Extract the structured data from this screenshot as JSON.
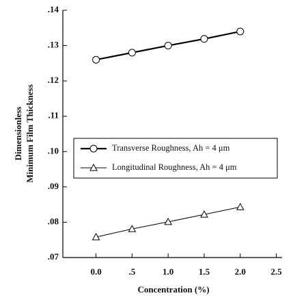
{
  "chart_data": {
    "type": "line",
    "x_label": "Concentration (%)",
    "y_label": [
      "Dimensionless",
      "Minimum Film Thickness"
    ],
    "x": [
      0,
      0.5,
      1,
      1.5,
      2
    ],
    "series": [
      {
        "name": "Transverse Roughness, Ah = 4 μm",
        "color": "#000000",
        "marker": "circle",
        "line_width": 2.2,
        "values": [
          0.126,
          0.128,
          0.13,
          0.1319,
          0.134
        ]
      },
      {
        "name": "Longitudinal Roughness, Ah = 4 μm",
        "color": "#000000",
        "marker": "triangle",
        "line_width": 1,
        "values": [
          0.0758,
          0.0781,
          0.0801,
          0.0822,
          0.0843
        ]
      }
    ],
    "xlim": [
      -0.46,
      2.58
    ],
    "ylim": [
      0.07,
      0.14
    ],
    "xticks": [
      {
        "value": 0,
        "label": "0.0"
      },
      {
        "value": 0.5,
        "label": ".5"
      },
      {
        "value": 1,
        "label": "1.0"
      },
      {
        "value": 1.5,
        "label": "1.5"
      },
      {
        "value": 2,
        "label": "2.0"
      },
      {
        "value": 2.5,
        "label": "2.5"
      }
    ],
    "yticks": [
      {
        "value": 0.07,
        "label": ".07"
      },
      {
        "value": 0.08,
        "label": ".08"
      },
      {
        "value": 0.09,
        "label": ".09"
      },
      {
        "value": 0.1,
        "label": ".10"
      },
      {
        "value": 0.11,
        "label": ".11"
      },
      {
        "value": 0.12,
        "label": ".12"
      },
      {
        "value": 0.13,
        "label": ".13"
      },
      {
        "value": 0.14,
        "label": ".14"
      }
    ],
    "grid": false
  }
}
